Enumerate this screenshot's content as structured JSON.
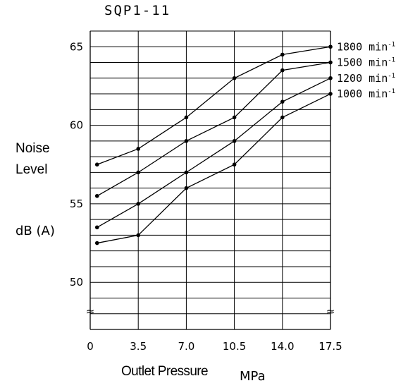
{
  "title": "SQP1-11",
  "axes": {
    "ylabel_line1": "Noise",
    "ylabel_line2": "Level",
    "yunit": "dB (A)",
    "xlabel": "Outlet Pressure",
    "xunit": "MPa"
  },
  "colors": {
    "line": "#000000",
    "grid": "#000000",
    "background": "#ffffff"
  },
  "chart_data": {
    "type": "line",
    "title": "SQP1-11",
    "xlabel": "Outlet Pressure MPa",
    "ylabel": "Noise Level dB (A)",
    "xlim": [
      0,
      17.5
    ],
    "ylim": [
      47,
      66
    ],
    "x_ticks": [
      "0",
      "3.5",
      "7.0",
      "10.5",
      "14.0",
      "17.5"
    ],
    "y_ticks": [
      "50",
      "55",
      "60",
      "65"
    ],
    "grid": true,
    "axis_break_symbol": "≈",
    "unit_suffix": "min",
    "unit_superscript": "-1",
    "x": [
      0.5,
      3.5,
      7.0,
      10.5,
      14.0,
      17.5
    ],
    "series": [
      {
        "name": "1800",
        "values": [
          57.5,
          58.5,
          60.5,
          63.0,
          64.5,
          65.0
        ]
      },
      {
        "name": "1500",
        "values": [
          55.5,
          57.0,
          59.0,
          60.5,
          63.5,
          64.0
        ]
      },
      {
        "name": "1200",
        "values": [
          53.5,
          55.0,
          57.0,
          59.0,
          61.5,
          63.0
        ]
      },
      {
        "name": "1000",
        "values": [
          52.5,
          53.0,
          56.0,
          57.5,
          60.5,
          62.0
        ]
      }
    ]
  }
}
